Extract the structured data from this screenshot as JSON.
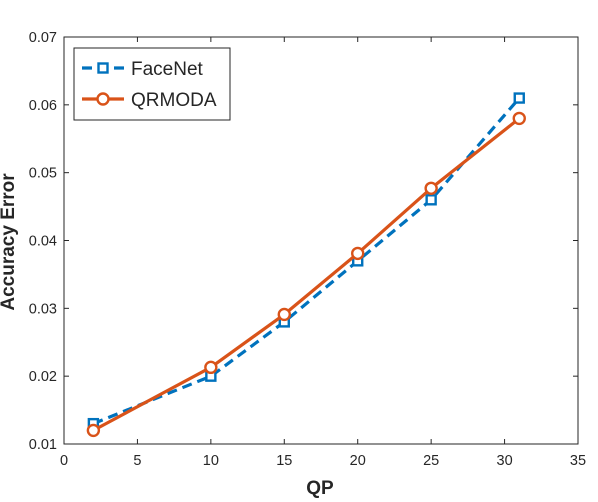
{
  "chart_data": {
    "type": "line",
    "title": "",
    "xlabel": "QP",
    "ylabel": "Accuracy Error",
    "xlim": [
      0,
      35
    ],
    "ylim": [
      0.01,
      0.07
    ],
    "xticks": [
      0,
      5,
      10,
      15,
      20,
      25,
      30,
      35
    ],
    "yticks": [
      0.01,
      0.02,
      0.03,
      0.04,
      0.05,
      0.06,
      0.07
    ],
    "xtick_labels": [
      "0",
      "5",
      "10",
      "15",
      "20",
      "25",
      "30",
      "35"
    ],
    "ytick_labels": [
      "0.01",
      "0.02",
      "0.03",
      "0.04",
      "0.05",
      "0.06",
      "0.07"
    ],
    "grid": false,
    "legend_position": "top-left",
    "series": [
      {
        "name": "FaceNet",
        "color": "#0072BD",
        "line_style": "dashed",
        "marker": "square",
        "x": [
          2,
          10,
          15,
          20,
          25,
          31
        ],
        "y": [
          0.013,
          0.02,
          0.028,
          0.037,
          0.046,
          0.061
        ]
      },
      {
        "name": "QRMODA",
        "color": "#D95319",
        "line_style": "solid",
        "marker": "circle",
        "x": [
          2,
          10,
          15,
          20,
          25,
          31
        ],
        "y": [
          0.012,
          0.0213,
          0.0291,
          0.0381,
          0.0477,
          0.058
        ]
      }
    ]
  }
}
